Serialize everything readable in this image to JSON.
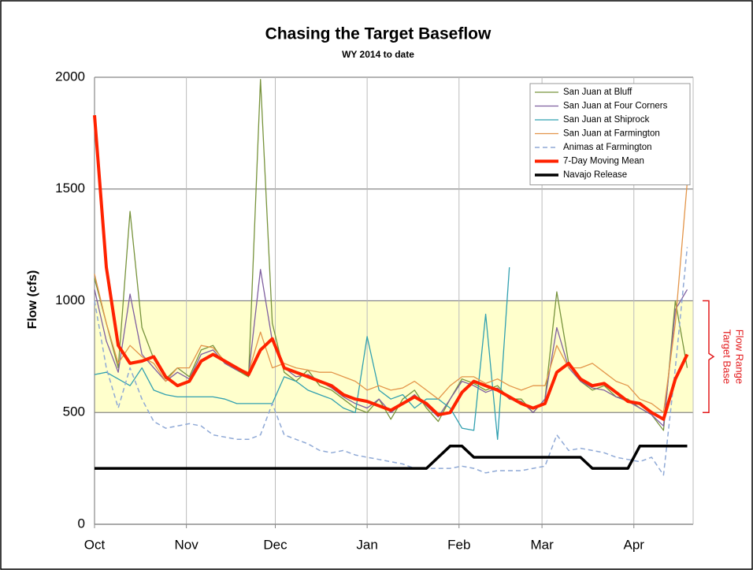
{
  "chart_data": {
    "type": "line",
    "title": "Chasing the Target Baseflow",
    "subtitle": "WY 2014 to date",
    "y_label": "Flow (cfs)",
    "annotation": [
      "Target Base",
      "Flow Range"
    ],
    "target_range": [
      500,
      1000
    ],
    "target_color": "#ffffcc",
    "annotation_color": "#e31a1c",
    "grid": true,
    "legend": "upper right",
    "xlim": [
      0,
      202
    ],
    "xticks": [
      {
        "value": 0,
        "label": "Oct"
      },
      {
        "value": 31,
        "label": "Nov"
      },
      {
        "value": 61,
        "label": "Dec"
      },
      {
        "value": 92,
        "label": "Jan"
      },
      {
        "value": 123,
        "label": "Feb"
      },
      {
        "value": 151,
        "label": "Mar"
      },
      {
        "value": 182,
        "label": "Apr"
      }
    ],
    "ylim": [
      0,
      2000
    ],
    "yticks": [
      0,
      500,
      1000,
      1500,
      2000
    ],
    "x": [
      0,
      4,
      8,
      12,
      16,
      20,
      24,
      28,
      32,
      36,
      40,
      44,
      48,
      52,
      56,
      60,
      64,
      68,
      72,
      76,
      80,
      84,
      88,
      92,
      96,
      100,
      104,
      108,
      112,
      116,
      120,
      124,
      128,
      132,
      136,
      140,
      144,
      148,
      152,
      156,
      160,
      164,
      168,
      172,
      176,
      180,
      184,
      188,
      192,
      196,
      200
    ],
    "series": [
      {
        "name": "San Juan at Bluff",
        "color": "#77933c",
        "width": 1.3,
        "dash": false,
        "values": [
          1100,
          900,
          700,
          1400,
          880,
          740,
          650,
          700,
          660,
          780,
          800,
          720,
          690,
          660,
          1990,
          900,
          680,
          640,
          690,
          620,
          600,
          560,
          520,
          500,
          560,
          470,
          560,
          600,
          520,
          460,
          560,
          650,
          630,
          600,
          620,
          560,
          560,
          500,
          560,
          1040,
          720,
          640,
          600,
          620,
          570,
          560,
          520,
          490,
          420,
          1000,
          700
        ]
      },
      {
        "name": "San Juan at Four Corners",
        "color": "#7f5fa0",
        "width": 1.3,
        "dash": false,
        "values": [
          1050,
          820,
          680,
          1030,
          760,
          700,
          640,
          680,
          650,
          760,
          780,
          720,
          690,
          670,
          1140,
          820,
          700,
          660,
          670,
          640,
          610,
          570,
          540,
          520,
          560,
          500,
          540,
          580,
          530,
          480,
          560,
          640,
          620,
          590,
          610,
          560,
          550,
          500,
          560,
          880,
          700,
          640,
          610,
          600,
          570,
          550,
          520,
          490,
          440,
          960,
          1050
        ]
      },
      {
        "name": "San Juan at Shiprock",
        "color": "#31a0b0",
        "width": 1.3,
        "dash": false,
        "values": [
          670,
          680,
          650,
          620,
          700,
          600,
          580,
          570,
          570,
          570,
          570,
          560,
          540,
          540,
          540,
          540,
          660,
          640,
          600,
          580,
          560,
          520,
          500,
          840,
          600,
          560,
          580,
          520,
          560,
          560,
          520,
          430,
          420,
          940,
          380,
          1150,
          null,
          null,
          null,
          null,
          null,
          null,
          null,
          null,
          null,
          null,
          null,
          null,
          null,
          null,
          null
        ]
      },
      {
        "name": "San Juan at Farmington",
        "color": "#e3954a",
        "width": 1.3,
        "dash": false,
        "values": [
          1120,
          900,
          720,
          800,
          750,
          720,
          640,
          700,
          700,
          800,
          790,
          730,
          700,
          680,
          860,
          700,
          720,
          700,
          690,
          680,
          680,
          660,
          640,
          600,
          620,
          600,
          610,
          640,
          600,
          560,
          620,
          660,
          660,
          630,
          650,
          620,
          600,
          620,
          620,
          800,
          700,
          700,
          720,
          680,
          640,
          620,
          560,
          540,
          500,
          900,
          1530
        ]
      },
      {
        "name": "Animas at Farmington",
        "color": "#8fa9d6",
        "width": 1.5,
        "dash": true,
        "values": [
          1000,
          700,
          520,
          700,
          560,
          460,
          430,
          440,
          450,
          440,
          400,
          390,
          380,
          380,
          400,
          540,
          400,
          380,
          360,
          330,
          320,
          330,
          310,
          300,
          290,
          280,
          270,
          250,
          250,
          250,
          250,
          260,
          250,
          230,
          240,
          240,
          240,
          250,
          260,
          400,
          330,
          340,
          330,
          320,
          300,
          290,
          280,
          300,
          220,
          700,
          1240
        ]
      },
      {
        "name": "7-Day Moving Mean",
        "color": "#ff2200",
        "width": 4,
        "dash": false,
        "values": [
          1830,
          1150,
          800,
          720,
          730,
          750,
          660,
          620,
          640,
          730,
          760,
          730,
          700,
          670,
          780,
          830,
          700,
          680,
          660,
          640,
          620,
          580,
          560,
          550,
          530,
          510,
          540,
          570,
          540,
          490,
          500,
          590,
          640,
          620,
          600,
          570,
          540,
          520,
          540,
          680,
          720,
          650,
          620,
          630,
          590,
          550,
          540,
          500,
          470,
          650,
          760
        ]
      },
      {
        "name": "Navajo Release",
        "color": "#000000",
        "width": 3.5,
        "dash": false,
        "values": [
          250,
          250,
          250,
          250,
          250,
          250,
          250,
          250,
          250,
          250,
          250,
          250,
          250,
          250,
          250,
          250,
          250,
          250,
          250,
          250,
          250,
          250,
          250,
          250,
          250,
          250,
          250,
          250,
          250,
          300,
          350,
          350,
          300,
          300,
          300,
          300,
          300,
          300,
          300,
          300,
          300,
          300,
          250,
          250,
          250,
          250,
          350,
          350,
          350,
          350,
          350
        ]
      }
    ]
  }
}
